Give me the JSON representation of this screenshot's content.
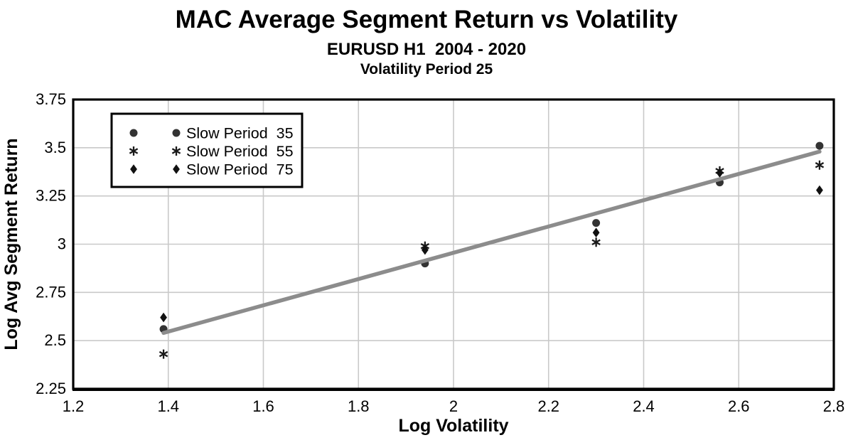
{
  "header": {
    "title": "MAC Average Segment Return vs Volatility",
    "subtitle": "EURUSD H1  2004 - 2020",
    "subtitle2": "Volatility Period 25"
  },
  "chart_data": {
    "type": "scatter",
    "title": "MAC Average Segment Return vs Volatility",
    "subtitle": "EURUSD H1  2004 - 2020",
    "subtitle2": "Volatility Period 25",
    "xlabel": "Log Volatility",
    "ylabel": "Log Avg Segment Return",
    "xlim": [
      1.2,
      2.8
    ],
    "ylim": [
      2.25,
      3.75
    ],
    "xticks": [
      1.2,
      1.4,
      1.6,
      1.8,
      2,
      2.2,
      2.4,
      2.6,
      2.8
    ],
    "yticks": [
      2.25,
      2.5,
      2.75,
      3,
      3.25,
      3.5,
      3.75
    ],
    "grid": true,
    "legend_position": "top-left",
    "series": [
      {
        "name": "Slow Period  35",
        "marker": "circle",
        "color": "#333333",
        "points": [
          [
            1.39,
            2.56
          ],
          [
            1.94,
            2.9
          ],
          [
            2.3,
            3.11
          ],
          [
            2.56,
            3.32
          ],
          [
            2.77,
            3.51
          ]
        ]
      },
      {
        "name": "Slow Period  55",
        "marker": "asterisk",
        "color": "#1a1a1a",
        "points": [
          [
            1.39,
            2.43
          ],
          [
            1.94,
            2.99
          ],
          [
            2.3,
            3.01
          ],
          [
            2.56,
            3.38
          ],
          [
            2.77,
            3.41
          ]
        ]
      },
      {
        "name": "Slow Period  75",
        "marker": "diamond",
        "color": "#111111",
        "points": [
          [
            1.39,
            2.62
          ],
          [
            1.94,
            2.97
          ],
          [
            2.3,
            3.06
          ],
          [
            2.56,
            3.37
          ],
          [
            2.77,
            3.28
          ]
        ]
      }
    ],
    "trendline": {
      "x1": 1.39,
      "y1": 2.54,
      "x2": 2.77,
      "y2": 3.48
    },
    "colors": {
      "trendline": "#8c8c8c",
      "gridline": "#c9c9c9",
      "axis_border": "#000000",
      "background": "#ffffff",
      "text": "#000000"
    }
  }
}
